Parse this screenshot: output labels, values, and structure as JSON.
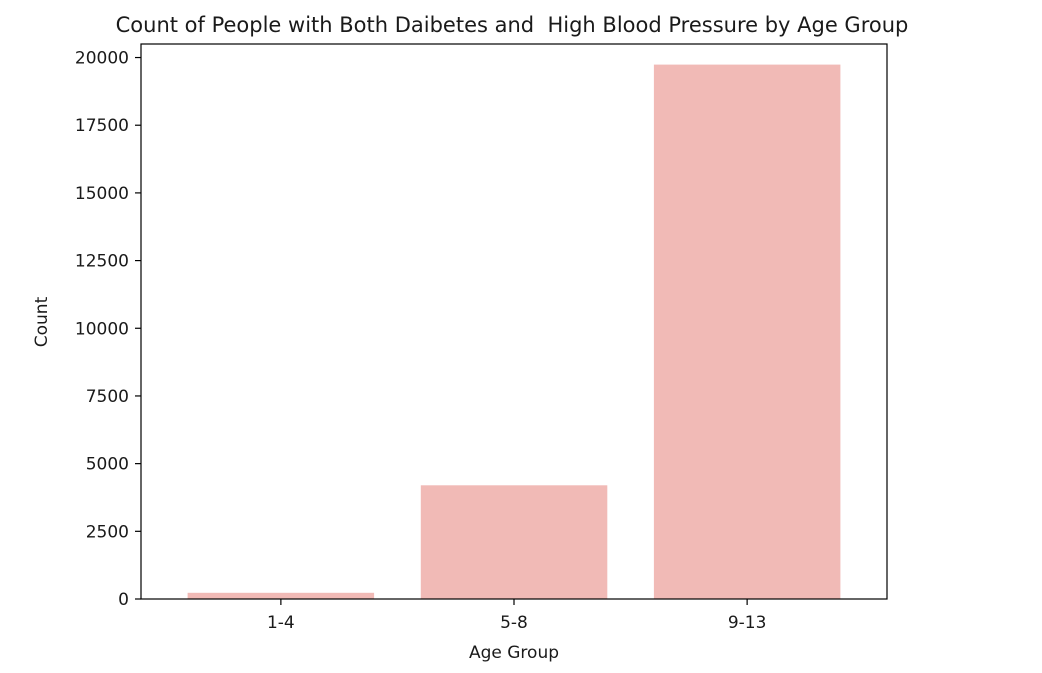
{
  "chart_data": {
    "type": "bar",
    "title": "Count of People with Both Daibetes and  High Blood Pressure by Age Group",
    "xlabel": "Age Group",
    "ylabel": "Count",
    "categories": [
      "1-4",
      "5-8",
      "9-13"
    ],
    "values": [
      230,
      4200,
      19740
    ],
    "ylim": [
      0,
      20500
    ],
    "yticks": [
      0,
      2500,
      5000,
      7500,
      10000,
      12500,
      15000,
      17500,
      20000
    ],
    "grid": false,
    "legend": "none",
    "bar_color": "#f1bab6"
  }
}
